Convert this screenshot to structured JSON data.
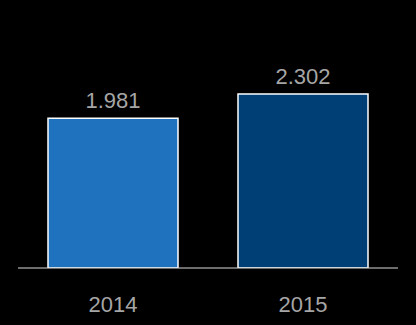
{
  "chart_data": {
    "type": "bar",
    "categories": [
      "2014",
      "2015"
    ],
    "values": [
      1.981,
      2.302
    ],
    "colors": [
      "#1f72bd",
      "#003f75"
    ],
    "ylim": [
      0,
      3.28
    ],
    "data_labels": true,
    "tick_labels": "x"
  }
}
